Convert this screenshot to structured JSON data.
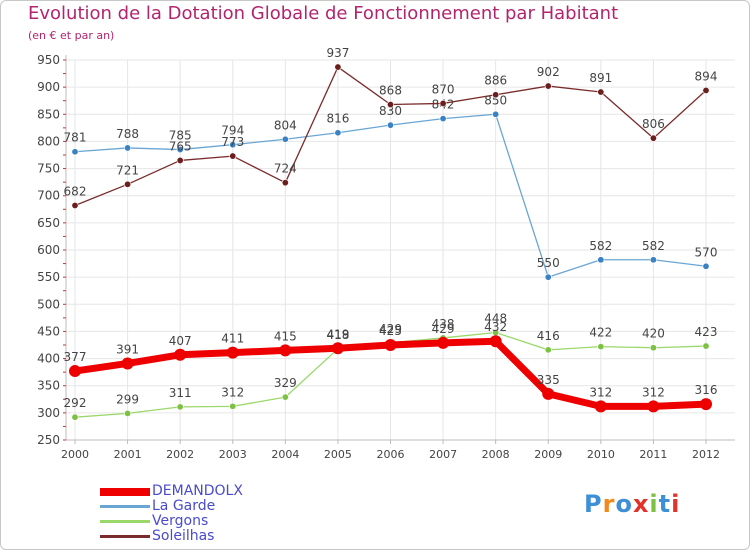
{
  "header": {
    "title": "Evolution de la Dotation Globale de Fonctionnement par Habitant",
    "subtitle": "(en € et par an)"
  },
  "logo": {
    "text": "Proxiti",
    "colors": [
      "#3d8fd6",
      "#f08a1c",
      "#3d8fd6",
      "#e2322a",
      "#7cc142",
      "#3d8fd6",
      "#e2322a"
    ]
  },
  "colors": {
    "title": "#b3246e",
    "axis": "#bbbbbb",
    "grid": "#e6e6e6",
    "labels": "#444444"
  },
  "chart_data": {
    "type": "line",
    "title": "Evolution de la Dotation Globale de Fonctionnement par Habitant",
    "subtitle": "(en € et par an)",
    "xlabel": "",
    "ylabel": "",
    "x": [
      "2000",
      "2001",
      "2002",
      "2003",
      "2004",
      "2005",
      "2006",
      "2007",
      "2008",
      "2009",
      "2010",
      "2011",
      "2012"
    ],
    "yticks": [
      250,
      300,
      350,
      400,
      450,
      500,
      550,
      600,
      650,
      700,
      750,
      800,
      850,
      900,
      950
    ],
    "ylim": [
      250,
      950
    ],
    "grid": true,
    "legend": "bottom-left",
    "series": [
      {
        "name": "La Garde",
        "color": "#6aa6d4",
        "marker": "#3a82c4",
        "width": 1.3,
        "values": [
          781,
          788,
          785,
          794,
          804,
          816,
          830,
          842,
          850,
          550,
          582,
          582,
          570
        ]
      },
      {
        "name": "Vergons",
        "color": "#9ad86a",
        "marker": "#7cc142",
        "width": 1.3,
        "values": [
          292,
          299,
          311,
          312,
          329,
          418,
          429,
          438,
          448,
          416,
          422,
          420,
          423
        ]
      },
      {
        "name": "Soleilhas",
        "color": "#7a2c2c",
        "marker": "#6b1e1e",
        "width": 1.3,
        "values": [
          682,
          721,
          765,
          773,
          724,
          937,
          868,
          870,
          886,
          902,
          891,
          806,
          894
        ]
      },
      {
        "name": "DEMANDOLX",
        "color": "#ee0000",
        "marker": "#ee0000",
        "width": 7,
        "values": [
          377,
          391,
          407,
          411,
          415,
          419,
          425,
          429,
          432,
          335,
          312,
          312,
          316
        ]
      }
    ],
    "legend_order": [
      "DEMANDOLX",
      "La Garde",
      "Vergons",
      "Soleilhas"
    ]
  }
}
